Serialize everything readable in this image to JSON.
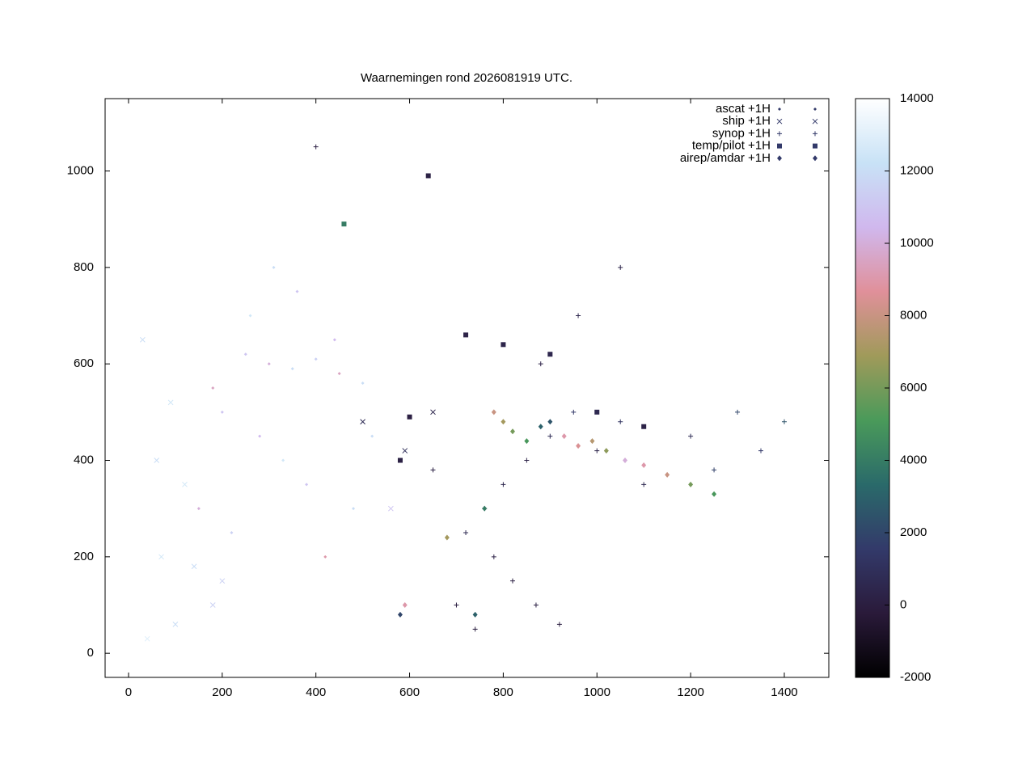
{
  "chart_data": {
    "type": "scatter",
    "title": "Waarnemingen rond 2026081919 UTC.",
    "xlim": [
      -50,
      1495
    ],
    "ylim": [
      -50,
      1150
    ],
    "xticks": [
      0,
      200,
      400,
      600,
      800,
      1000,
      1200,
      1400
    ],
    "yticks": [
      0,
      200,
      400,
      600,
      800,
      1000
    ],
    "cblim": [
      -2000,
      14000
    ],
    "cbticks": [
      -2000,
      0,
      2000,
      4000,
      6000,
      8000,
      10000,
      12000,
      14000
    ],
    "palette": [
      "#000000",
      "#2a1a3a",
      "#333a6a",
      "#2a6a6a",
      "#4a9a5a",
      "#a09a5a",
      "#e0909a",
      "#d0b8ee",
      "#c8e2f6",
      "#ffffff"
    ],
    "legend": "top right",
    "series": [
      {
        "name": "ascat +1H",
        "marker": "dot",
        "x": [
          250,
          300,
          350,
          400,
          450,
          500,
          200,
          280,
          330,
          380,
          150,
          220,
          420,
          480,
          260,
          360,
          310,
          440,
          180,
          520
        ],
        "values": [
          620,
          600,
          590,
          610,
          580,
          560,
          500,
          450,
          400,
          350,
          300,
          250,
          200,
          300,
          700,
          750,
          800,
          650,
          550,
          450
        ],
        "z": [
          11000,
          10000,
          12000,
          11500,
          9500,
          12000,
          11000,
          10500,
          12500,
          11000,
          10000,
          11500,
          9000,
          12000,
          12500,
          11000,
          12000,
          10500,
          9500,
          12000
        ]
      },
      {
        "name": "ship +1H",
        "marker": "cross",
        "x": [
          60,
          120,
          180,
          40,
          100,
          560,
          590,
          650,
          70,
          140,
          200,
          500,
          30,
          90
        ],
        "values": [
          400,
          350,
          100,
          30,
          60,
          300,
          420,
          500,
          200,
          180,
          150,
          480,
          650,
          520
        ],
        "z": [
          12000,
          12500,
          11500,
          13000,
          12000,
          11000,
          1000,
          500,
          12500,
          12000,
          11500,
          800,
          12000,
          12500
        ]
      },
      {
        "name": "synop +1H",
        "marker": "plus",
        "x": [
          760,
          800,
          850,
          900,
          950,
          1000,
          1050,
          1100,
          780,
          820,
          870,
          920,
          1200,
          1250,
          1300,
          720,
          700,
          740,
          880,
          960,
          1050,
          1350,
          1400,
          400,
          650
        ],
        "values": [
          300,
          350,
          400,
          450,
          500,
          420,
          480,
          350,
          200,
          150,
          100,
          60,
          450,
          380,
          500,
          250,
          100,
          50,
          600,
          700,
          800,
          420,
          480,
          1050,
          380
        ],
        "z": [
          200,
          500,
          300,
          800,
          1500,
          400,
          1200,
          600,
          300,
          100,
          200,
          50,
          900,
          1800,
          2000,
          700,
          100,
          50,
          300,
          500,
          400,
          1500,
          2500,
          100,
          200
        ]
      },
      {
        "name": "temp/pilot +1H",
        "marker": "square",
        "x": [
          600,
          640,
          720,
          800,
          900,
          1000,
          1100,
          580,
          460
        ],
        "values": [
          490,
          990,
          660,
          640,
          620,
          500,
          470,
          400,
          890
        ],
        "z": [
          100,
          200,
          300,
          400,
          500,
          600,
          300,
          200,
          4000
        ]
      },
      {
        "name": "airep/amdar +1H",
        "marker": "diamond",
        "x": [
          780,
          800,
          820,
          850,
          880,
          900,
          930,
          960,
          990,
          1020,
          1060,
          1100,
          1150,
          1200,
          1250,
          760,
          740,
          680,
          580,
          590
        ],
        "values": [
          500,
          480,
          460,
          440,
          470,
          480,
          450,
          430,
          440,
          420,
          400,
          390,
          370,
          350,
          330,
          300,
          80,
          240,
          80,
          100
        ],
        "z": [
          8000,
          7000,
          6000,
          5000,
          3000,
          2500,
          9000,
          8500,
          7500,
          6500,
          10000,
          9000,
          8000,
          6000,
          5000,
          4000,
          3000,
          7000,
          2000,
          9000
        ]
      }
    ]
  }
}
